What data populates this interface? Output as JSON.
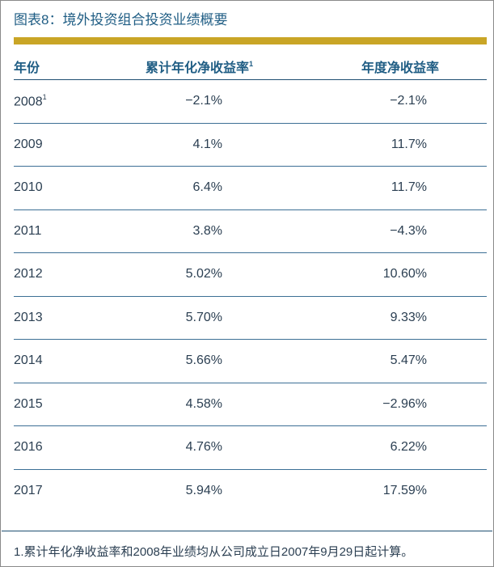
{
  "title": "图表8：境外投资组合投资业绩概要",
  "colors": {
    "title": "#1f5d84",
    "accent_bar": "#c9a526",
    "rule": "#3c6f95",
    "text": "#2b3f52"
  },
  "table": {
    "headers": {
      "year": "年份",
      "cumulative": "累计年化净收益率",
      "cumulative_sup": "1",
      "annual": "年度净收益率"
    },
    "rows": [
      {
        "year": "2008",
        "year_sup": "1",
        "cumulative": "−2.1%",
        "annual": "−2.1%"
      },
      {
        "year": "2009",
        "year_sup": "",
        "cumulative": "4.1%",
        "annual": "11.7%"
      },
      {
        "year": "2010",
        "year_sup": "",
        "cumulative": "6.4%",
        "annual": "11.7%"
      },
      {
        "year": "2011",
        "year_sup": "",
        "cumulative": "3.8%",
        "annual": "−4.3%"
      },
      {
        "year": "2012",
        "year_sup": "",
        "cumulative": "5.02%",
        "annual": "10.60%"
      },
      {
        "year": "2013",
        "year_sup": "",
        "cumulative": "5.70%",
        "annual": "9.33%"
      },
      {
        "year": "2014",
        "year_sup": "",
        "cumulative": "5.66%",
        "annual": "5.47%"
      },
      {
        "year": "2015",
        "year_sup": "",
        "cumulative": "4.58%",
        "annual": "−2.96%"
      },
      {
        "year": "2016",
        "year_sup": "",
        "cumulative": "4.76%",
        "annual": "6.22%"
      },
      {
        "year": "2017",
        "year_sup": "",
        "cumulative": "5.94%",
        "annual": "17.59%"
      }
    ]
  },
  "footnote": "1.累计年化净收益率和2008年业绩均从公司成立日2007年9月29日起计算。"
}
